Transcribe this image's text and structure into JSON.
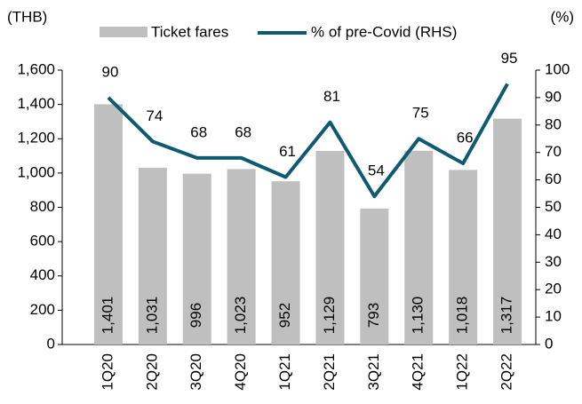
{
  "chart_data": {
    "type": "bar-line",
    "ylabel": "(THB)",
    "y2label": "(%)",
    "categories": [
      "1Q20",
      "2Q20",
      "3Q20",
      "4Q20",
      "1Q21",
      "2Q21",
      "3Q21",
      "4Q21",
      "1Q22",
      "2Q22"
    ],
    "series": [
      {
        "name": "Ticket fares",
        "color": "#bfbfbf",
        "type": "bar",
        "values": [
          1401,
          1031,
          996,
          1023,
          952,
          1129,
          793,
          1130,
          1018,
          1317
        ],
        "value_labels": [
          "1,401",
          "1,031",
          "996",
          "1,023",
          "952",
          "1,129",
          "793",
          "1,130",
          "1,018",
          "1,317"
        ]
      },
      {
        "name": "% of pre-Covid (RHS)",
        "color": "#0e5a73",
        "type": "line",
        "axis": "y2",
        "values": [
          90,
          74,
          68,
          68,
          61,
          81,
          54,
          75,
          66,
          95
        ]
      }
    ],
    "ylim": [
      0,
      1600
    ],
    "yticks": [
      0,
      200,
      400,
      600,
      800,
      {
        "value": 1000,
        "label": "1,000"
      },
      {
        "value": 1200,
        "label": "1,200"
      },
      {
        "value": 1400,
        "label": "1,400"
      },
      {
        "value": 1600,
        "label": "1,600"
      }
    ],
    "y2lim": [
      0,
      100
    ],
    "y2ticks": [
      0,
      10,
      20,
      30,
      40,
      50,
      60,
      70,
      80,
      90,
      100
    ]
  }
}
